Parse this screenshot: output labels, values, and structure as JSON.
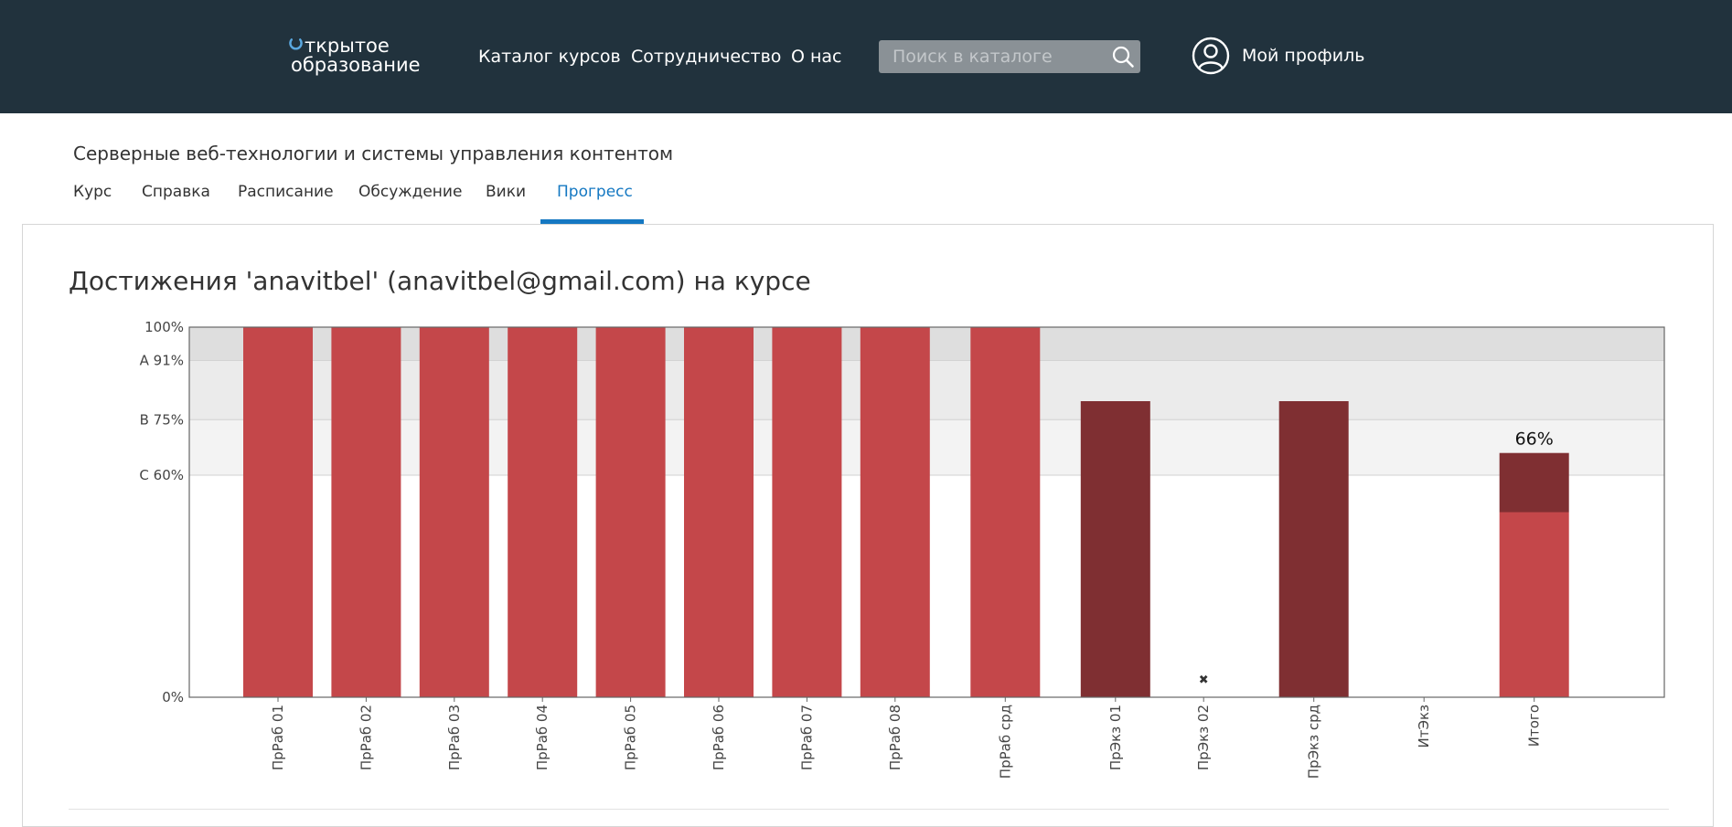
{
  "header": {
    "logo_line1": "ткрытое",
    "logo_line2": "образование",
    "nav": [
      "Каталог курсов",
      "Сотрудничество",
      "О нас"
    ],
    "search_placeholder": "Поиск в каталоге",
    "profile_label": "Мой профиль"
  },
  "course": {
    "title": "Серверные веб-технологии и системы управления контентом",
    "tabs": [
      "Курс",
      "Справка",
      "Расписание",
      "Обсуждение",
      "Вики",
      "Прогресс"
    ],
    "active_tab": "Прогресс"
  },
  "page": {
    "heading": "Достижения 'anavitbel' (anavitbel@gmail.com) на курсе"
  },
  "colors": {
    "topbar": "#21323d",
    "accent": "#1578c2",
    "bar_light": "#c4474a",
    "bar_dark": "#7f2f32"
  },
  "chart_data": {
    "type": "bar",
    "title": "",
    "xlabel": "",
    "ylabel": "",
    "ylim": [
      0,
      100
    ],
    "y_ticks": [
      {
        "value": 0,
        "label": "0%"
      },
      {
        "value": 60,
        "label": "C 60%"
      },
      {
        "value": 75,
        "label": "B 75%"
      },
      {
        "value": 91,
        "label": "A 91%"
      },
      {
        "value": 100,
        "label": "100%"
      }
    ],
    "grade_bands": [
      {
        "from": 60,
        "to": 75,
        "color": "#f3f3f3"
      },
      {
        "from": 75,
        "to": 91,
        "color": "#ebebeb"
      },
      {
        "from": 91,
        "to": 100,
        "color": "#dedede"
      }
    ],
    "categories": [
      "ПрРаб 01",
      "ПрРаб 02",
      "ПрРаб 03",
      "ПрРаб 04",
      "ПрРаб 05",
      "ПрРаб 06",
      "ПрРаб 07",
      "ПрРаб 08",
      "ПрРаб срд",
      "ПрЭкз 01",
      "ПрЭкз 02",
      "ПрЭкз срд",
      "ИтЭкз",
      "Итого"
    ],
    "slots": [
      0,
      1,
      2,
      3,
      4,
      5,
      6,
      7,
      8.25,
      9.5,
      10.5,
      11.75,
      13,
      14.25
    ],
    "values": [
      100,
      100,
      100,
      100,
      100,
      100,
      100,
      100,
      100,
      80,
      0,
      80,
      null,
      66
    ],
    "bar_style": [
      "light",
      "light",
      "light",
      "light",
      "light",
      "light",
      "light",
      "light",
      "light",
      "dark",
      "none",
      "dark",
      "none",
      "stacked"
    ],
    "total_breakdown": {
      "light_part": 50,
      "dark_part": 16
    },
    "total_label": "66%",
    "dropped_marker": "✖",
    "dropped_index": 10
  }
}
